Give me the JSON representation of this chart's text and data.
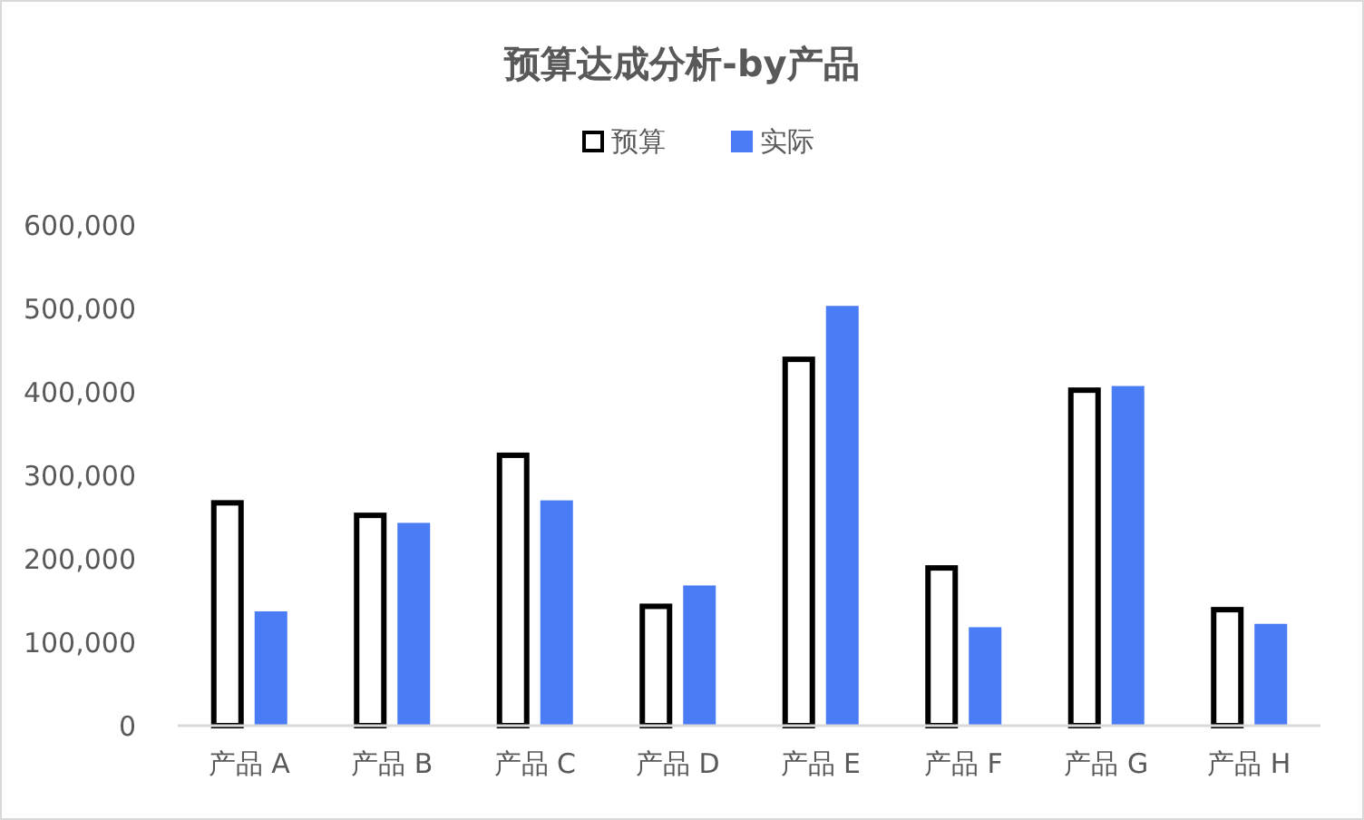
{
  "chart_data": {
    "type": "bar",
    "title": "预算达成分析-by产品",
    "categories": [
      "产品 A",
      "产品 B",
      "产品 C",
      "产品 D",
      "产品 E",
      "产品 F",
      "产品 G",
      "产品 H"
    ],
    "series": [
      {
        "name": "预算",
        "color": "#000000",
        "values": [
          267000,
          252000,
          324000,
          143000,
          439000,
          189000,
          402000,
          139000
        ]
      },
      {
        "name": "实际",
        "color": "#4a7cf6",
        "values": [
          137000,
          243000,
          270000,
          168000,
          503000,
          118000,
          407000,
          122000
        ]
      }
    ],
    "ylim": [
      0,
      600000
    ],
    "yticks": [
      {
        "value": 0,
        "label": "0"
      },
      {
        "value": 100000,
        "label": "100,000"
      },
      {
        "value": 200000,
        "label": "200,000"
      },
      {
        "value": 300000,
        "label": "300,000"
      },
      {
        "value": 400000,
        "label": "400,000"
      },
      {
        "value": 500000,
        "label": "500,000"
      },
      {
        "value": 600000,
        "label": "600,000"
      }
    ],
    "grid": false,
    "legend": "top"
  }
}
